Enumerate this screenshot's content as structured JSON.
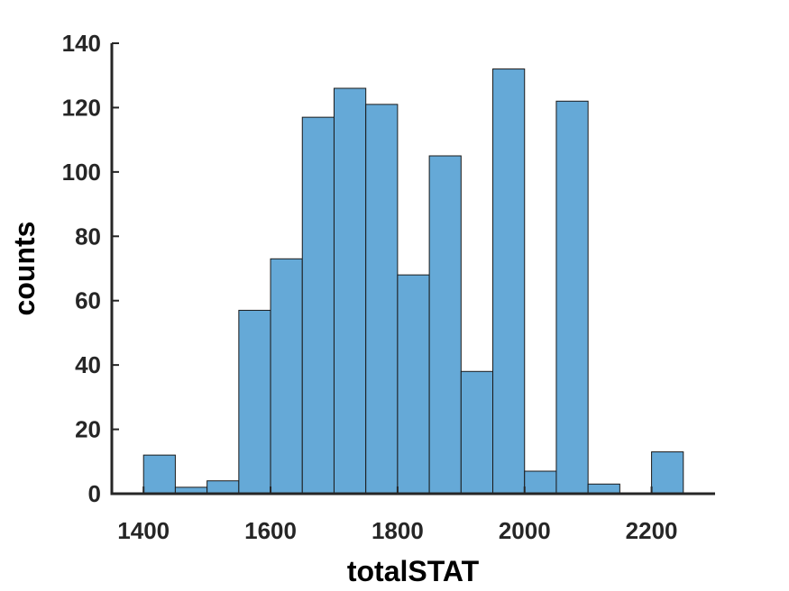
{
  "chart_data": {
    "type": "bar",
    "title": "",
    "xlabel": "totalSTAT",
    "ylabel": "counts",
    "xlim": [
      1350,
      2300
    ],
    "ylim": [
      0,
      140
    ],
    "bin_width": 50,
    "bin_edges": [
      1400,
      1450,
      1500,
      1550,
      1600,
      1650,
      1700,
      1750,
      1800,
      1850,
      1900,
      1950,
      2000,
      2050,
      2100,
      2150,
      2200,
      2250
    ],
    "values": [
      12,
      2,
      4,
      57,
      73,
      117,
      126,
      121,
      68,
      105,
      38,
      132,
      7,
      122,
      3,
      0,
      13
    ],
    "xticks": [
      "1400",
      "1600",
      "1800",
      "2000",
      "2200"
    ],
    "yticks": [
      "0",
      "20",
      "40",
      "60",
      "80",
      "100",
      "120",
      "140"
    ],
    "grid": false,
    "bar_color": "#65a9d7",
    "edge_color": "#1a1a1a"
  }
}
